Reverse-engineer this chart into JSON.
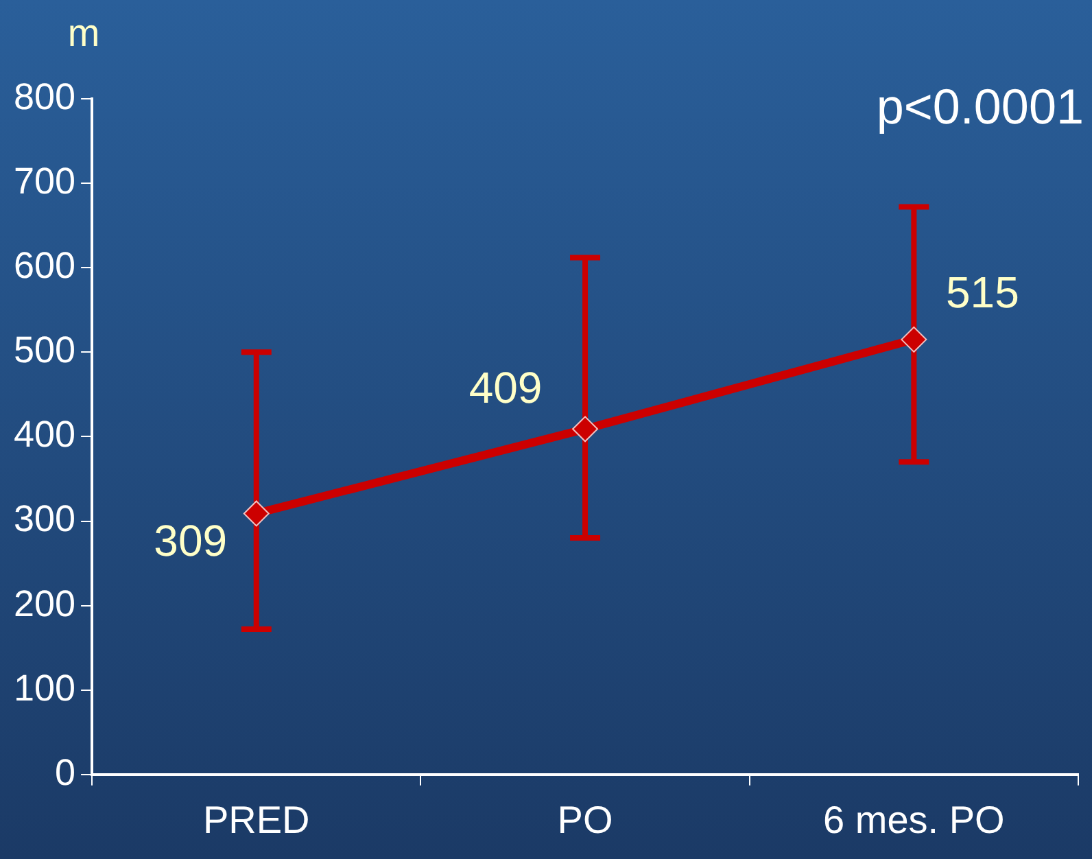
{
  "chart_data": {
    "type": "line",
    "ylabel": "m",
    "annotations": [
      "p<0.0001"
    ],
    "categories": [
      "PRED",
      "PO",
      "6 mes. PO"
    ],
    "series": [
      {
        "color": "#cc0000",
        "values": [
          309,
          409,
          515
        ],
        "errors": [
          [
            172,
            500
          ],
          [
            280,
            612
          ],
          [
            370,
            672
          ]
        ]
      }
    ],
    "ylim": [
      0,
      800
    ],
    "yticks": [
      0,
      100,
      200,
      300,
      400,
      500,
      600,
      700,
      800
    ],
    "grid": false,
    "legend": false,
    "data_labels": true,
    "marker": "diamond",
    "line_style": "solid"
  }
}
